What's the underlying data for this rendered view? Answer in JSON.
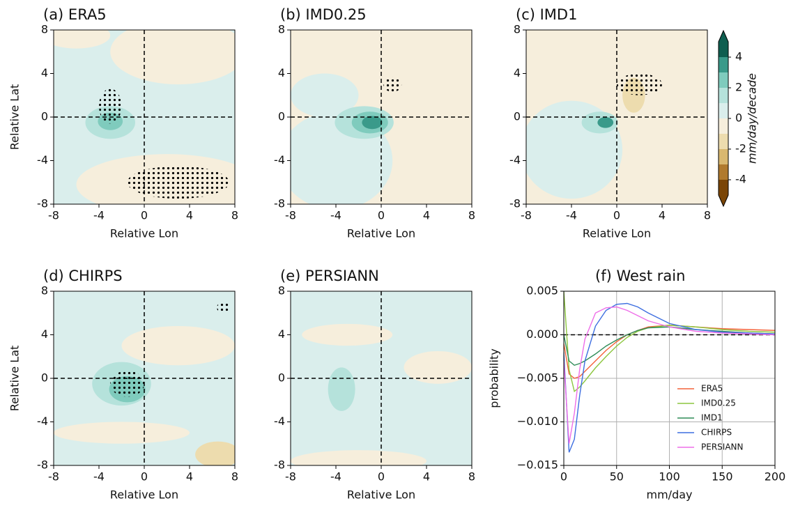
{
  "chart_data": [
    {
      "type": "contour",
      "title": "(a)  ERA5",
      "xlabel": "Relative Lon",
      "ylabel": "Relative Lat",
      "xlim": [
        -8,
        8
      ],
      "ylim": [
        -8,
        8
      ],
      "xticks": [
        -8,
        -4,
        0,
        4,
        8
      ],
      "yticks": [
        -8,
        -4,
        0,
        4,
        8
      ]
    },
    {
      "type": "contour",
      "title": "(b)  IMD0.25",
      "xlabel": "Relative Lon",
      "xlim": [
        -8,
        8
      ],
      "ylim": [
        -8,
        8
      ],
      "xticks": [
        -8,
        -4,
        0,
        4,
        8
      ],
      "yticks": [
        -8,
        -4,
        0,
        4,
        8
      ]
    },
    {
      "type": "contour",
      "title": "(c)  IMD1",
      "xlabel": "Relative Lon",
      "xlim": [
        -8,
        8
      ],
      "ylim": [
        -8,
        8
      ],
      "xticks": [
        -8,
        -4,
        0,
        4,
        8
      ],
      "yticks": [
        -8,
        -4,
        0,
        4,
        8
      ]
    },
    {
      "type": "contour",
      "title": "(d)  CHIRPS",
      "xlabel": "Relative Lon",
      "ylabel": "Relative Lat",
      "xlim": [
        -8,
        8
      ],
      "ylim": [
        -8,
        8
      ],
      "xticks": [
        -8,
        -4,
        0,
        4,
        8
      ],
      "yticks": [
        -8,
        -4,
        0,
        4,
        8
      ]
    },
    {
      "type": "contour",
      "title": "(e)  PERSIANN",
      "xlabel": "Relative Lon",
      "xlim": [
        -8,
        8
      ],
      "ylim": [
        -8,
        8
      ],
      "xticks": [
        -8,
        -4,
        0,
        4,
        8
      ],
      "yticks": [
        -8,
        -4,
        0,
        4,
        8
      ]
    },
    {
      "type": "line",
      "title": "(f)  West rain",
      "xlabel": "mm/day",
      "ylabel": "probability",
      "x": [
        0,
        5,
        10,
        15,
        20,
        30,
        40,
        50,
        60,
        70,
        80,
        100,
        125,
        150,
        175,
        200
      ],
      "xlim": [
        0,
        200
      ],
      "xticks": [
        0,
        50,
        100,
        150,
        200
      ],
      "ylim": [
        -0.015,
        0.005
      ],
      "yticks": [
        {
          "value": -0.015,
          "label": "−0.015"
        },
        {
          "value": -0.01,
          "label": "−0.010"
        },
        {
          "value": -0.005,
          "label": "−0.005"
        },
        {
          "value": 0,
          "label": "0.000"
        },
        {
          "value": 0.005,
          "label": "0.005"
        }
      ],
      "grid": true,
      "legend": "lower right",
      "series": [
        {
          "name": "ERA5",
          "color": "#f4623a",
          "values": [
            -0.001,
            -0.0045,
            -0.005,
            -0.0048,
            -0.0042,
            -0.003,
            -0.0018,
            -0.0008,
            0,
            0.0005,
            0.0009,
            0.0011,
            0.0009,
            0.0007,
            0.0006,
            0.0005
          ]
        },
        {
          "name": "IMD0.25",
          "color": "#8cc63f",
          "values": [
            0.005,
            -0.004,
            -0.0065,
            -0.006,
            -0.0053,
            -0.0038,
            -0.0025,
            -0.0013,
            -0.0003,
            0.0004,
            0.0008,
            0.0011,
            0.0009,
            0.0006,
            0.0004,
            0.0003
          ]
        },
        {
          "name": "IMD1",
          "color": "#2e8b57",
          "values": [
            0,
            -0.003,
            -0.0035,
            -0.0033,
            -0.003,
            -0.0022,
            -0.0013,
            -0.0006,
            0,
            0.0005,
            0.0008,
            0.0009,
            0.0006,
            0.0004,
            0.0002,
            0.0001
          ]
        },
        {
          "name": "CHIRPS",
          "color": "#3d6ee0",
          "values": [
            -0.002,
            -0.0135,
            -0.012,
            -0.007,
            -0.003,
            0.001,
            0.0028,
            0.0035,
            0.0036,
            0.0032,
            0.0025,
            0.0013,
            0.0006,
            0.0003,
            0.0002,
            0.0001
          ]
        },
        {
          "name": "PERSIANN",
          "color": "#ee6ee8",
          "values": [
            -0.003,
            -0.0125,
            -0.009,
            -0.004,
            -0.0005,
            0.0025,
            0.0031,
            0.0032,
            0.0028,
            0.0022,
            0.0016,
            0.0009,
            0.0004,
            0.0002,
            0.0001,
            0
          ]
        }
      ]
    },
    {
      "type": "colorbar",
      "label": "mm/day/decade",
      "ylim": [
        -5,
        5
      ],
      "yticks": [
        -4,
        -2,
        0,
        2,
        4
      ],
      "levels": [
        -5,
        -4,
        -3,
        -2,
        -1,
        0,
        1,
        2,
        3,
        4,
        5
      ],
      "colors": [
        "#7a4506",
        "#b07a2e",
        "#d9b870",
        "#eddcae",
        "#f6eedc",
        "#daeeec",
        "#b5e2db",
        "#7fcbbd",
        "#3a9a8a",
        "#0f5e50"
      ]
    }
  ]
}
